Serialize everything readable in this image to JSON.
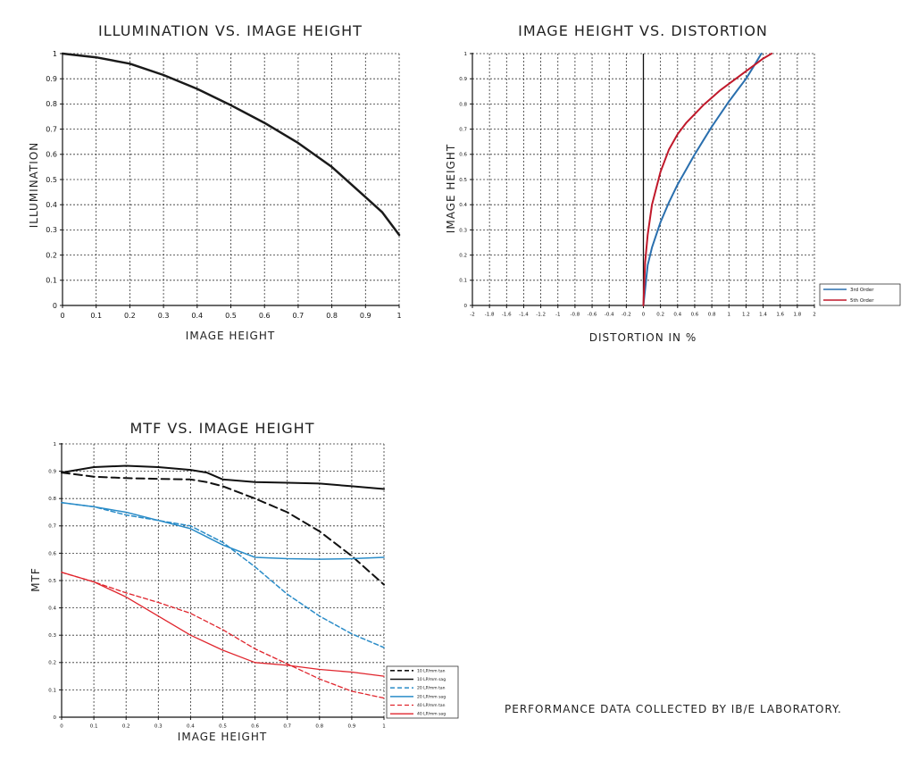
{
  "footer_note": "PERFORMANCE DATA COLLECTED BY IB/E LABORATORY.",
  "chart_data": [
    {
      "type": "line",
      "title": "ILLUMINATION VS. IMAGE HEIGHT",
      "xlabel": "IMAGE HEIGHT",
      "ylabel": "ILLUMINATION",
      "xlim": [
        0,
        1
      ],
      "ylim": [
        0,
        1
      ],
      "xticks": [
        0,
        0.1,
        0.2,
        0.3,
        0.4,
        0.5,
        0.6,
        0.7,
        0.8,
        0.9,
        1
      ],
      "xtick_labels": [
        "0",
        "0.1",
        "0.2",
        "0.3",
        "0.4",
        "0.5",
        "0.6",
        "0.7",
        "0.8",
        "0.9",
        "1"
      ],
      "yticks": [
        0,
        0.1,
        0.2,
        0.3,
        0.4,
        0.5,
        0.6,
        0.7,
        0.8,
        0.9,
        1
      ],
      "ytick_labels": [
        "0",
        "0.1",
        "0.2",
        "0.3",
        "0.4",
        "0.5",
        "0.6",
        "0.7",
        "0.8",
        "0.9",
        "1"
      ],
      "grid": true,
      "series": [
        {
          "color": "#1a1a1a",
          "dash": "solid",
          "width": 2.5,
          "x": [
            0,
            0.1,
            0.2,
            0.3,
            0.4,
            0.5,
            0.6,
            0.7,
            0.8,
            0.9,
            0.95,
            1
          ],
          "y": [
            1,
            0.985,
            0.96,
            0.915,
            0.86,
            0.795,
            0.725,
            0.645,
            0.55,
            0.43,
            0.37,
            0.28
          ]
        }
      ]
    },
    {
      "type": "line",
      "title": "IMAGE HEIGHT VS. DISTORTION",
      "xlabel": "DISTORTION IN %",
      "ylabel": "IMAGE HEIGHT",
      "xlim": [
        -2,
        2
      ],
      "ylim": [
        0,
        1
      ],
      "xticks": [
        -2,
        -1.8,
        -1.6,
        -1.4,
        -1.2,
        -1,
        -0.8,
        -0.6,
        -0.4,
        -0.2,
        0,
        0.2,
        0.4,
        0.6,
        0.8,
        1,
        1.2,
        1.4,
        1.6,
        1.8,
        2
      ],
      "xtick_labels": [
        "-2",
        "-1.8",
        "-1.6",
        "-1.4",
        "-1.2",
        "-1",
        "-0.8",
        "-0.6",
        "-0.4",
        "-0.2",
        "0",
        "0.2",
        "0.4",
        "0.6",
        "0.8",
        "1",
        "1.2",
        "1.4",
        "1.6",
        "1.8",
        "2"
      ],
      "yticks": [
        0,
        0.1,
        0.2,
        0.3,
        0.4,
        0.5,
        0.6,
        0.7,
        0.8,
        0.9,
        1
      ],
      "ytick_labels": [
        "0",
        "0.1",
        "0.2",
        "0.3",
        "0.4",
        "0.5",
        "0.6",
        "0.7",
        "0.8",
        "0.9",
        "1"
      ],
      "grid": true,
      "legend_position": "right",
      "series": [
        {
          "name": "3rd Order",
          "color": "#2a6fae",
          "dash": "solid",
          "width": 2,
          "x": [
            0,
            0.05,
            0.1,
            0.2,
            0.3,
            0.4,
            0.5,
            0.6,
            0.7,
            0.8,
            0.9,
            1.0,
            1.1,
            1.2,
            1.3,
            1.38
          ],
          "y": [
            0,
            0.16,
            0.23,
            0.33,
            0.41,
            0.48,
            0.54,
            0.6,
            0.655,
            0.71,
            0.76,
            0.81,
            0.855,
            0.9,
            0.955,
            1.0
          ]
        },
        {
          "name": "5th Order",
          "color": "#c0192b",
          "dash": "solid",
          "width": 2,
          "x": [
            0,
            0.02,
            0.05,
            0.1,
            0.2,
            0.3,
            0.4,
            0.5,
            0.6,
            0.7,
            0.8,
            0.9,
            1.0,
            1.1,
            1.2,
            1.3,
            1.4,
            1.5
          ],
          "y": [
            0,
            0.17,
            0.28,
            0.4,
            0.53,
            0.62,
            0.68,
            0.725,
            0.76,
            0.795,
            0.825,
            0.855,
            0.88,
            0.905,
            0.93,
            0.955,
            0.98,
            1.0
          ]
        }
      ]
    },
    {
      "type": "line",
      "title": "MTF VS. IMAGE HEIGHT",
      "xlabel": "IMAGE HEIGHT",
      "ylabel": "MTF",
      "xlim": [
        0,
        1
      ],
      "ylim": [
        0,
        1
      ],
      "xticks": [
        0,
        0.1,
        0.2,
        0.3,
        0.4,
        0.5,
        0.6,
        0.7,
        0.8,
        0.9,
        1
      ],
      "xtick_labels": [
        "0",
        "0.1",
        "0.2",
        "0.3",
        "0.4",
        "0.5",
        "0.6",
        "0.7",
        "0.8",
        "0.9",
        "1"
      ],
      "yticks": [
        0,
        0.1,
        0.2,
        0.3,
        0.4,
        0.5,
        0.6,
        0.7,
        0.8,
        0.9,
        1
      ],
      "ytick_labels": [
        "0",
        "0.1",
        "0.2",
        "0.3",
        "0.4",
        "0.5",
        "0.6",
        "0.7",
        "0.8",
        "0.9",
        "1"
      ],
      "grid": true,
      "legend_position": "bottom-right outside",
      "series": [
        {
          "name": "10 LP/mm tan",
          "color": "#111111",
          "dash": "dashed",
          "width": 2,
          "x": [
            0,
            0.1,
            0.2,
            0.3,
            0.4,
            0.45,
            0.5,
            0.6,
            0.7,
            0.8,
            0.9,
            1.0
          ],
          "y": [
            0.895,
            0.88,
            0.875,
            0.872,
            0.87,
            0.86,
            0.845,
            0.8,
            0.75,
            0.68,
            0.59,
            0.485
          ]
        },
        {
          "name": "10 LP/mm sag",
          "color": "#111111",
          "dash": "solid",
          "width": 2,
          "x": [
            0,
            0.1,
            0.2,
            0.3,
            0.4,
            0.45,
            0.5,
            0.6,
            0.7,
            0.8,
            0.9,
            1.0
          ],
          "y": [
            0.895,
            0.915,
            0.92,
            0.915,
            0.905,
            0.895,
            0.87,
            0.86,
            0.858,
            0.855,
            0.845,
            0.835
          ]
        },
        {
          "name": "20 LP/mm tan",
          "color": "#2a8cc8",
          "dash": "dashed",
          "width": 1.5,
          "x": [
            0,
            0.1,
            0.2,
            0.3,
            0.4,
            0.5,
            0.6,
            0.7,
            0.8,
            0.9,
            1.0
          ],
          "y": [
            0.785,
            0.77,
            0.74,
            0.72,
            0.7,
            0.64,
            0.55,
            0.45,
            0.37,
            0.305,
            0.255
          ]
        },
        {
          "name": "20 LP/mm sag",
          "color": "#2a8cc8",
          "dash": "solid",
          "width": 1.5,
          "x": [
            0,
            0.1,
            0.2,
            0.3,
            0.4,
            0.5,
            0.6,
            0.7,
            0.8,
            0.9,
            1.0
          ],
          "y": [
            0.785,
            0.77,
            0.75,
            0.72,
            0.69,
            0.63,
            0.585,
            0.58,
            0.578,
            0.58,
            0.585
          ]
        },
        {
          "name": "40 LP/mm tan",
          "color": "#e0252d",
          "dash": "dashed",
          "width": 1.3,
          "x": [
            0,
            0.1,
            0.2,
            0.3,
            0.4,
            0.5,
            0.6,
            0.7,
            0.8,
            0.9,
            1.0
          ],
          "y": [
            0.53,
            0.495,
            0.455,
            0.42,
            0.38,
            0.32,
            0.25,
            0.195,
            0.14,
            0.095,
            0.07
          ]
        },
        {
          "name": "40 LP/mm sag",
          "color": "#e0252d",
          "dash": "solid",
          "width": 1.3,
          "x": [
            0,
            0.1,
            0.2,
            0.3,
            0.4,
            0.5,
            0.6,
            0.7,
            0.8,
            0.9,
            1.0
          ],
          "y": [
            0.53,
            0.495,
            0.44,
            0.37,
            0.3,
            0.245,
            0.2,
            0.19,
            0.175,
            0.165,
            0.15
          ]
        }
      ]
    }
  ]
}
